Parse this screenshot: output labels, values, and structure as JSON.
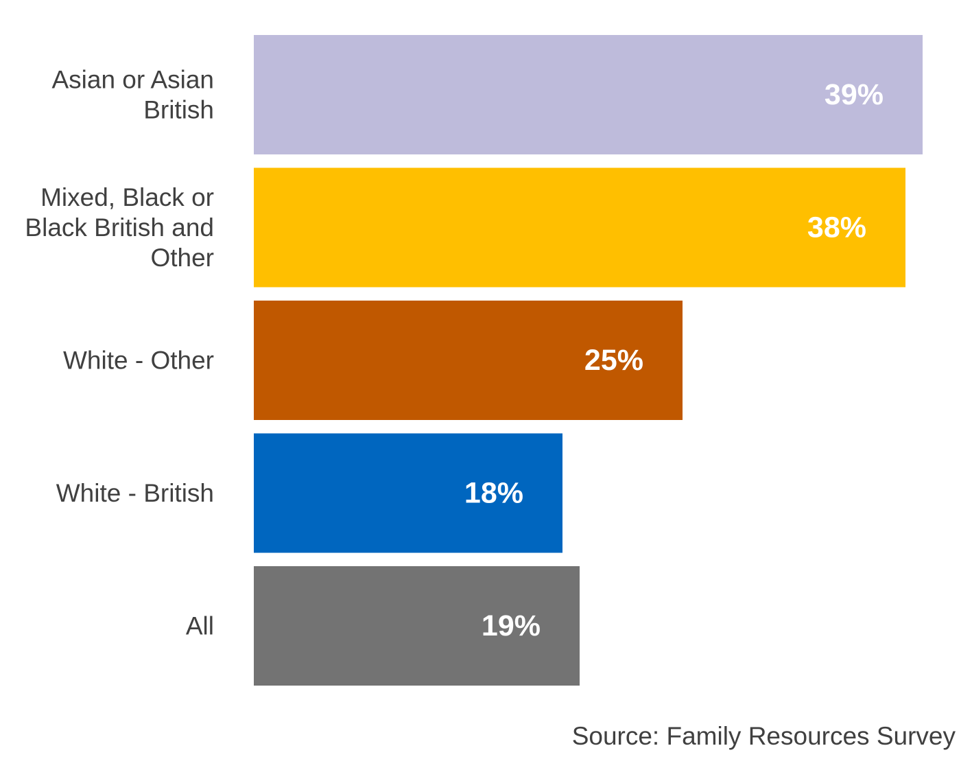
{
  "chart_data": {
    "type": "bar",
    "orientation": "horizontal",
    "categories": [
      [
        "Asian or Asian",
        "British"
      ],
      [
        "Mixed, Black or",
        "Black British and",
        "Other"
      ],
      [
        "White - Other"
      ],
      [
        "White - British"
      ],
      [
        "All"
      ]
    ],
    "values": [
      39,
      38,
      25,
      18,
      19
    ],
    "value_labels": [
      "39%",
      "38%",
      "25%",
      "18%",
      "19%"
    ],
    "colors": [
      "#bebbdb",
      "#ffbf00",
      "#c05800",
      "#0066bf",
      "#737373"
    ],
    "title": "",
    "xlabel": "",
    "ylabel": "",
    "xlim": [
      0,
      39
    ],
    "grid": false,
    "legend": "none"
  },
  "source": "Source: Family Resources Survey"
}
